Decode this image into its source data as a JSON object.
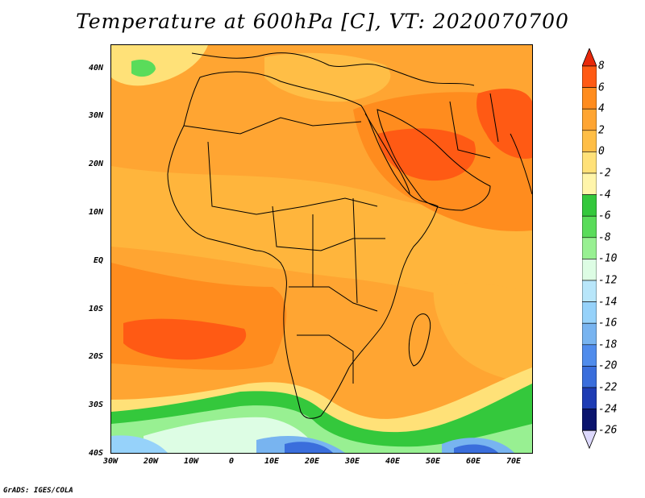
{
  "title": "Temperature at 600hPa [C], VT: 2020070700",
  "credit": "GrADS: IGES/COLA",
  "map": {
    "lat_labels": [
      "40N",
      "30N",
      "20N",
      "10N",
      "EQ",
      "10S",
      "20S",
      "30S",
      "40S"
    ],
    "lon_labels": [
      "30W",
      "20W",
      "10W",
      "0",
      "10E",
      "20E",
      "30E",
      "40E",
      "50E",
      "60E",
      "70E"
    ],
    "lat_range": [
      -40,
      45
    ],
    "lon_range": [
      -30,
      75
    ]
  },
  "colorbar": {
    "labels": [
      "8",
      "6",
      "4",
      "2",
      "0",
      "-2",
      "-4",
      "-6",
      "-8",
      "-10",
      "-12",
      "-14",
      "-16",
      "-18",
      "-20",
      "-22",
      "-24",
      "-26"
    ],
    "colors": [
      "#e8280a",
      "#ff5a14",
      "#ff8c1e",
      "#ffa532",
      "#ffbe46",
      "#ffe178",
      "#fff5aa",
      "#34c83c",
      "#5adc5a",
      "#98f092",
      "#ddfde4",
      "#b8e6fa",
      "#96d2fa",
      "#78b4f0",
      "#508cec",
      "#3a6edc",
      "#1e3cb4",
      "#0a146e",
      "#dcd8fc"
    ]
  }
}
